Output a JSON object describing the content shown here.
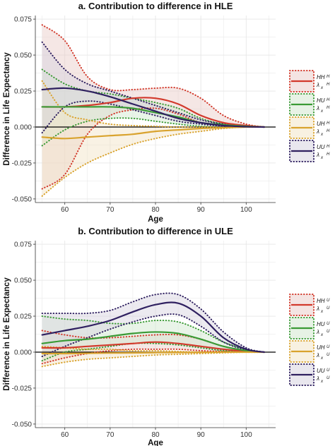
{
  "chart_data": [
    {
      "type": "line",
      "title": "a. Contribution to difference in HLE",
      "xlabel": "Age",
      "ylabel": "Difference in Life Expectancy",
      "xlim": [
        53.5,
        106.5
      ],
      "ylim": [
        -0.0525,
        0.0775
      ],
      "xticks": [
        60,
        70,
        80,
        90,
        100
      ],
      "yticks": [
        -0.05,
        -0.025,
        0,
        0.025,
        0.05,
        0.075
      ],
      "ytick_labels": [
        "-0.050",
        "-0.025",
        "0.000",
        "0.025",
        "0.050",
        "0.075"
      ],
      "grid": true,
      "legend_position": "right",
      "series": [
        {
          "legend_main": "HH",
          "legend_lambda": "λ",
          "legend_sub": "x",
          "legend_sup": "H",
          "color": "#d23a2c",
          "band_color": "#e9c9c6",
          "x": [
            55,
            60,
            65,
            70,
            75,
            80,
            85,
            90,
            95,
            100,
            104
          ],
          "y": [
            0.014,
            0.014,
            0.015,
            0.017,
            0.02,
            0.02,
            0.016,
            0.008,
            0.003,
            0.001,
            0.0
          ],
          "upper": [
            0.071,
            0.06,
            0.035,
            0.026,
            0.026,
            0.027,
            0.027,
            0.02,
            0.008,
            0.002,
            0.0
          ],
          "lower": [
            -0.043,
            -0.033,
            -0.005,
            0.008,
            0.012,
            0.013,
            0.009,
            0.003,
            0.001,
            0.0,
            0.0
          ]
        },
        {
          "legend_main": "HU",
          "legend_lambda": "λ",
          "legend_sub": "x",
          "legend_sup": "H",
          "color": "#3a9a35",
          "band_color": "#cfe6cc",
          "x": [
            55,
            60,
            65,
            70,
            75,
            80,
            85,
            90,
            95,
            100,
            104
          ],
          "y": [
            0.014,
            0.014,
            0.014,
            0.014,
            0.013,
            0.01,
            0.007,
            0.003,
            0.0015,
            0.0005,
            0.0
          ],
          "upper": [
            0.04,
            0.03,
            0.025,
            0.023,
            0.02,
            0.017,
            0.013,
            0.006,
            0.002,
            0.0005,
            0.0
          ],
          "lower": [
            -0.013,
            -0.002,
            0.004,
            0.006,
            0.006,
            0.004,
            0.002,
            0.0005,
            0.0,
            0.0,
            0.0
          ]
        },
        {
          "legend_main": "UH",
          "legend_lambda": "λ",
          "legend_sub": "x",
          "legend_sup": "H",
          "color": "#d9a32e",
          "band_color": "#f2e3c4",
          "x": [
            55,
            60,
            65,
            70,
            75,
            80,
            85,
            90,
            95,
            100,
            104
          ],
          "y": [
            -0.007,
            -0.008,
            -0.007,
            -0.006,
            -0.005,
            -0.003,
            -0.002,
            -0.001,
            -0.0005,
            0.0,
            0.0
          ],
          "upper": [
            0.032,
            0.01,
            0.005,
            0.002,
            0.001,
            0.0005,
            0.0,
            0.0,
            0.0,
            0.0,
            0.0
          ],
          "lower": [
            -0.048,
            -0.035,
            -0.025,
            -0.018,
            -0.012,
            -0.008,
            -0.005,
            -0.003,
            -0.001,
            0.0,
            0.0
          ]
        },
        {
          "legend_main": "UU",
          "legend_lambda": "λ",
          "legend_sub": "x",
          "legend_sup": "H",
          "color": "#2f2060",
          "band_color": "#d4d0de",
          "x": [
            55,
            60,
            65,
            70,
            75,
            80,
            85,
            90,
            95,
            100,
            104
          ],
          "y": [
            0.026,
            0.027,
            0.025,
            0.021,
            0.016,
            0.011,
            0.006,
            0.003,
            0.001,
            0.0002,
            0.0
          ],
          "upper": [
            0.059,
            0.04,
            0.03,
            0.025,
            0.02,
            0.015,
            0.01,
            0.005,
            0.002,
            0.0005,
            0.0
          ],
          "lower": [
            -0.004,
            0.014,
            0.018,
            0.016,
            0.012,
            0.008,
            0.004,
            0.002,
            0.0005,
            0.0,
            0.0
          ]
        }
      ]
    },
    {
      "type": "line",
      "title": "b. Contribution to difference in ULE",
      "xlabel": "Age",
      "ylabel": "Difference in Life Expectancy",
      "xlim": [
        53.5,
        106.5
      ],
      "ylim": [
        -0.0525,
        0.0775
      ],
      "xticks": [
        60,
        70,
        80,
        90,
        100
      ],
      "yticks": [
        -0.05,
        -0.025,
        0,
        0.025,
        0.05,
        0.075
      ],
      "ytick_labels": [
        "-0.050",
        "-0.025",
        "0.000",
        "0.025",
        "0.050",
        "0.075"
      ],
      "grid": true,
      "legend_position": "right",
      "series": [
        {
          "legend_main": "HH",
          "legend_lambda": "λ",
          "legend_sub": "x",
          "legend_sup": "U",
          "color": "#d23a2c",
          "band_color": "#e9c9c6",
          "x": [
            55,
            60,
            65,
            70,
            75,
            80,
            85,
            90,
            95,
            100,
            104
          ],
          "y": [
            0.003,
            0.003,
            0.004,
            0.005,
            0.006,
            0.007,
            0.006,
            0.004,
            0.002,
            0.0005,
            0.0
          ],
          "upper": [
            0.015,
            0.012,
            0.01,
            0.01,
            0.011,
            0.012,
            0.012,
            0.009,
            0.004,
            0.001,
            0.0
          ],
          "lower": [
            -0.008,
            -0.004,
            -0.001,
            0.001,
            0.002,
            0.002,
            0.002,
            0.001,
            0.0005,
            0.0,
            0.0
          ]
        },
        {
          "legend_main": "HU",
          "legend_lambda": "λ",
          "legend_sub": "x",
          "legend_sup": "U",
          "color": "#3a9a35",
          "band_color": "#cfe6cc",
          "x": [
            55,
            60,
            65,
            70,
            75,
            80,
            85,
            90,
            95,
            100,
            104
          ],
          "y": [
            0.006,
            0.008,
            0.009,
            0.011,
            0.013,
            0.014,
            0.013,
            0.009,
            0.004,
            0.001,
            0.0
          ],
          "upper": [
            0.025,
            0.023,
            0.022,
            0.02,
            0.02,
            0.022,
            0.021,
            0.015,
            0.007,
            0.002,
            0.0
          ],
          "lower": [
            -0.006,
            0.0,
            0.002,
            0.004,
            0.006,
            0.006,
            0.005,
            0.003,
            0.001,
            0.0,
            0.0
          ]
        },
        {
          "legend_main": "UH",
          "legend_lambda": "λ",
          "legend_sub": "x",
          "legend_sup": "U",
          "color": "#d9a32e",
          "band_color": "#f2e3c4",
          "x": [
            55,
            60,
            65,
            70,
            75,
            80,
            85,
            90,
            95,
            100,
            104
          ],
          "y": [
            -0.001,
            -0.001,
            -0.0008,
            -0.0006,
            -0.0005,
            -0.0003,
            -0.0002,
            -0.0001,
            0.0,
            0.0,
            0.0
          ],
          "upper": [
            0.004,
            0.003,
            0.002,
            0.002,
            0.001,
            0.001,
            0.0005,
            0.0,
            0.0,
            0.0,
            0.0
          ],
          "lower": [
            -0.01,
            -0.007,
            -0.005,
            -0.004,
            -0.003,
            -0.002,
            -0.0015,
            -0.001,
            -0.0005,
            0.0,
            0.0
          ]
        },
        {
          "legend_main": "UU",
          "legend_lambda": "λ",
          "legend_sub": "x",
          "legend_sup": "U",
          "color": "#2f2060",
          "band_color": "#d4d0de",
          "x": [
            55,
            60,
            65,
            70,
            75,
            80,
            85,
            90,
            95,
            100,
            104
          ],
          "y": [
            0.012,
            0.015,
            0.018,
            0.022,
            0.028,
            0.033,
            0.034,
            0.025,
            0.01,
            0.002,
            0.0
          ],
          "upper": [
            0.027,
            0.027,
            0.027,
            0.029,
            0.035,
            0.04,
            0.04,
            0.03,
            0.014,
            0.003,
            0.0
          ],
          "lower": [
            -0.003,
            0.004,
            0.01,
            0.016,
            0.021,
            0.025,
            0.026,
            0.018,
            0.007,
            0.0015,
            0.0
          ]
        }
      ]
    }
  ]
}
